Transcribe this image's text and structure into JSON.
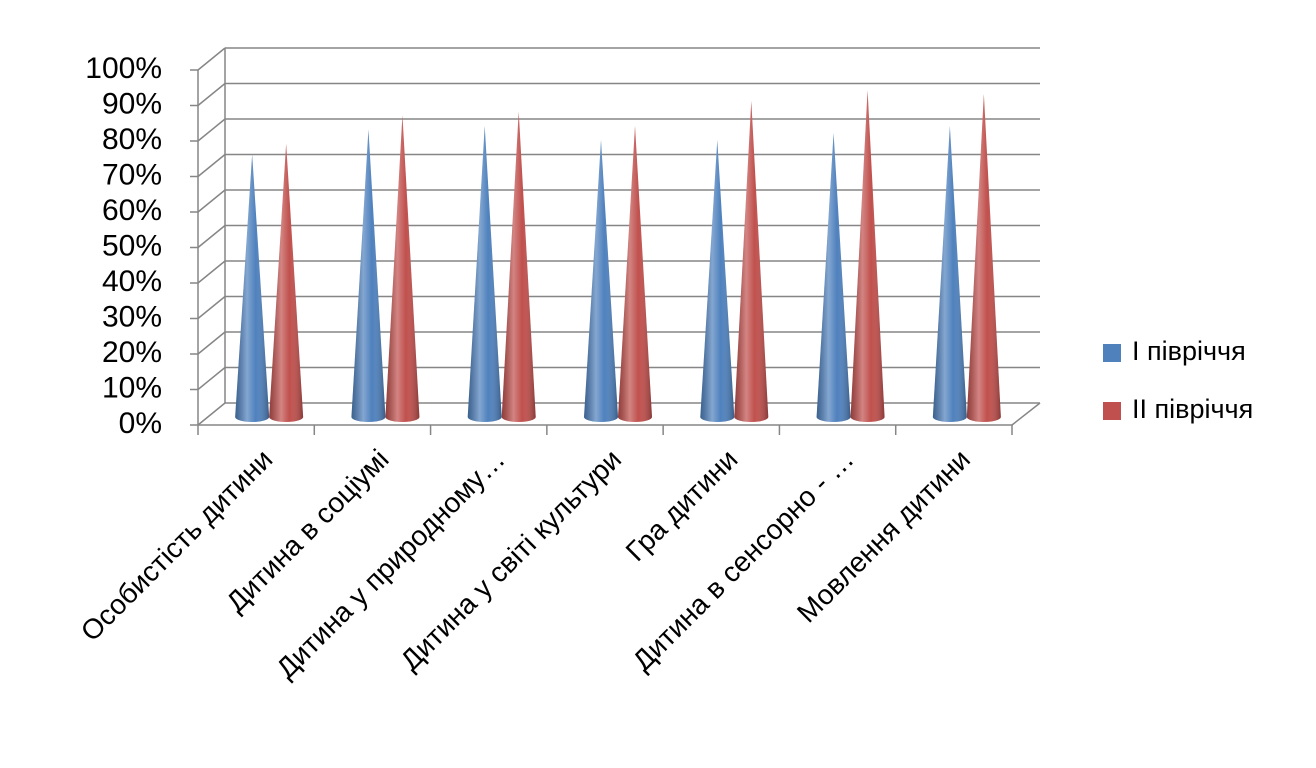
{
  "chart_data": {
    "type": "cone3d",
    "categories": [
      "Особистість дитини",
      "Дитина в соціумі",
      "Дитина у природному…",
      "Дитина у світі культури",
      "Гра дитини",
      "Дитина в сенсорно - …",
      "Мовлення дитини"
    ],
    "series": [
      {
        "name": "I півріччя",
        "color": "#4f81bd",
        "values": [
          74,
          81,
          82,
          78,
          78,
          80,
          82
        ]
      },
      {
        "name": "II півріччя",
        "color": "#c0504d",
        "values": [
          77,
          85,
          86,
          82,
          89,
          92,
          91
        ]
      }
    ],
    "ylim": [
      0,
      100
    ],
    "yticks": [
      {
        "value": 0,
        "label": "0%"
      },
      {
        "value": 10,
        "label": "10%"
      },
      {
        "value": 20,
        "label": "20%"
      },
      {
        "value": 30,
        "label": "30%"
      },
      {
        "value": 40,
        "label": "40%"
      },
      {
        "value": 50,
        "label": "50%"
      },
      {
        "value": 60,
        "label": "60%"
      },
      {
        "value": 70,
        "label": "70%"
      },
      {
        "value": 80,
        "label": "80%"
      },
      {
        "value": 90,
        "label": "90%"
      },
      {
        "value": 100,
        "label": "100%"
      }
    ],
    "grid": true,
    "legend": "right"
  }
}
